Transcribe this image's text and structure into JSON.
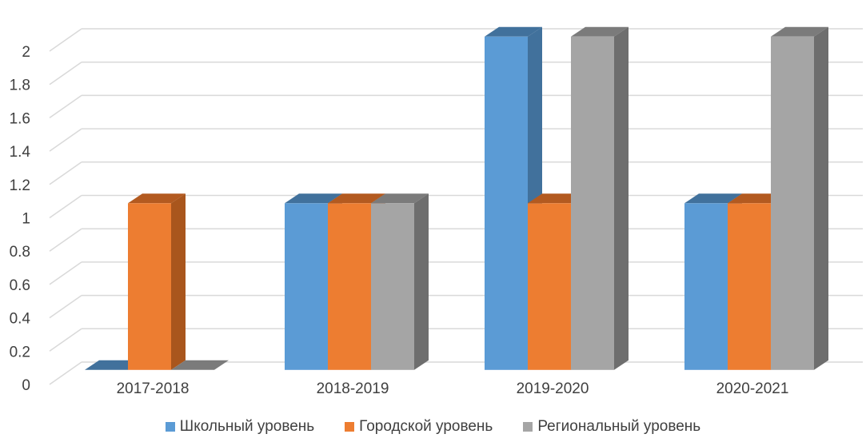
{
  "chart_data": {
    "type": "bar",
    "title": "",
    "xlabel": "",
    "ylabel": "",
    "categories": [
      "2017-2018",
      "2018-2019",
      "2019-2020",
      "2020-2021"
    ],
    "series": [
      {
        "name": "Школьный уровень",
        "values": [
          0,
          1,
          2,
          1
        ],
        "color": "#5B9BD5",
        "side_color": "#41719C",
        "top_color": "#41719C"
      },
      {
        "name": "Городской уровень",
        "values": [
          1,
          1,
          1,
          1
        ],
        "color": "#ED7D31",
        "side_color": "#A9561D",
        "top_color": "#B35A20"
      },
      {
        "name": "Региональный уровень",
        "values": [
          0,
          1,
          2,
          2
        ],
        "color": "#A5A5A5",
        "side_color": "#6E6E6E",
        "top_color": "#7B7B7B"
      }
    ],
    "yticks": [
      "0",
      "0.2",
      "0.4",
      "0.6",
      "0.8",
      "1",
      "1.2",
      "1.4",
      "1.6",
      "1.8",
      "2"
    ],
    "ylim": [
      0,
      2
    ],
    "grid": true,
    "legend_position": "bottom",
    "style": "3d-clustered-column"
  }
}
